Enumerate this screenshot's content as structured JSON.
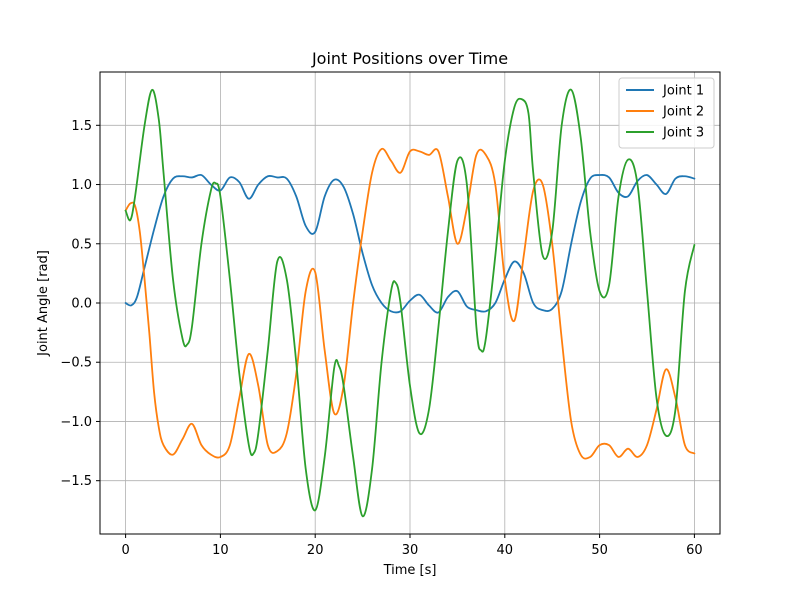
{
  "chart_data": {
    "type": "line",
    "title": "Joint Positions over Time",
    "xlabel": "Time [s]",
    "ylabel": "Joint Angle [rad]",
    "xlim": [
      -2.7,
      62.7
    ],
    "ylim": [
      -1.95,
      1.95
    ],
    "xticks": [
      0,
      10,
      20,
      30,
      40,
      50,
      60
    ],
    "yticks": [
      -1.5,
      -1.0,
      -0.5,
      0.0,
      0.5,
      1.0,
      1.5
    ],
    "ytick_labels": [
      "−1.5",
      "−1.0",
      "−0.5",
      "0.0",
      "0.5",
      "1.0",
      "1.5"
    ],
    "grid": true,
    "legend_position": "top-right",
    "series": [
      {
        "name": "Joint 1",
        "color": "#1f77b4",
        "x": [
          0,
          0.6,
          1.2,
          2,
          3,
          4,
          5,
          6,
          7,
          8,
          9,
          10,
          11,
          12,
          13,
          14,
          15,
          16,
          17,
          18,
          19,
          20,
          21,
          22,
          23,
          24,
          25,
          26,
          27,
          28,
          29,
          30,
          31,
          32,
          33,
          34,
          35,
          36,
          37,
          38,
          39,
          40,
          41,
          42,
          43,
          44,
          45,
          46,
          47,
          48,
          49,
          50,
          51,
          52,
          53,
          54,
          55,
          56,
          57,
          58,
          59,
          60
        ],
        "y": [
          0.0,
          -0.02,
          0.05,
          0.3,
          0.62,
          0.9,
          1.05,
          1.07,
          1.06,
          1.08,
          1.0,
          0.95,
          1.06,
          1.02,
          0.88,
          1.0,
          1.07,
          1.06,
          1.05,
          0.9,
          0.65,
          0.6,
          0.9,
          1.04,
          0.98,
          0.75,
          0.42,
          0.15,
          0.0,
          -0.07,
          -0.07,
          0.02,
          0.07,
          -0.02,
          -0.08,
          0.05,
          0.1,
          -0.03,
          -0.06,
          -0.07,
          0.0,
          0.2,
          0.35,
          0.25,
          0.0,
          -0.06,
          -0.05,
          0.1,
          0.5,
          0.85,
          1.05,
          1.08,
          1.06,
          0.93,
          0.9,
          1.03,
          1.08,
          1.0,
          0.92,
          1.05,
          1.07,
          1.05
        ]
      },
      {
        "name": "Joint 2",
        "color": "#ff7f0e",
        "x": [
          0,
          0.5,
          1,
          1.5,
          2,
          2.5,
          3,
          3.5,
          4,
          5,
          6,
          7,
          8,
          9,
          10,
          11,
          12,
          13,
          14,
          15,
          16,
          17,
          18,
          19,
          20,
          21,
          22,
          23,
          24,
          25,
          26,
          27,
          28,
          29,
          30,
          31,
          32,
          33,
          34,
          35,
          36,
          37,
          38,
          39,
          40,
          41,
          42,
          43,
          44,
          45,
          46,
          47,
          48,
          49,
          50,
          51,
          52,
          53,
          54,
          55,
          56,
          57,
          58,
          59,
          60
        ],
        "y": [
          0.78,
          0.84,
          0.82,
          0.6,
          0.2,
          -0.25,
          -0.75,
          -1.05,
          -1.2,
          -1.28,
          -1.15,
          -1.02,
          -1.2,
          -1.28,
          -1.3,
          -1.2,
          -0.8,
          -0.43,
          -0.7,
          -1.2,
          -1.25,
          -1.1,
          -0.6,
          0.1,
          0.26,
          -0.4,
          -0.93,
          -0.7,
          0.0,
          0.6,
          1.1,
          1.3,
          1.2,
          1.1,
          1.28,
          1.28,
          1.25,
          1.28,
          0.9,
          0.5,
          0.8,
          1.25,
          1.25,
          1.0,
          0.2,
          -0.15,
          0.4,
          0.95,
          1.0,
          0.5,
          -0.3,
          -1.0,
          -1.28,
          -1.3,
          -1.2,
          -1.2,
          -1.3,
          -1.23,
          -1.3,
          -1.2,
          -0.9,
          -0.56,
          -0.8,
          -1.2,
          -1.27
        ]
      },
      {
        "name": "Joint 3",
        "color": "#2ca02c",
        "x": [
          0,
          0.5,
          1,
          2,
          2.8,
          3.5,
          4,
          5,
          6,
          6.5,
          7,
          8,
          9,
          9.5,
          10,
          11,
          12,
          13,
          13.5,
          14,
          15,
          16,
          17,
          18,
          19,
          20,
          21,
          22,
          22.5,
          23,
          24,
          25,
          26,
          27,
          28,
          28.5,
          29,
          30,
          31,
          32,
          33,
          34,
          35,
          36,
          37,
          37.5,
          38,
          39,
          40,
          41,
          41.8,
          42.5,
          43,
          44,
          45,
          46,
          47,
          48,
          49,
          50,
          51,
          52,
          53,
          54,
          55,
          56,
          57,
          58,
          59,
          60
        ],
        "y": [
          0.78,
          0.7,
          0.9,
          1.5,
          1.8,
          1.55,
          1.1,
          0.2,
          -0.3,
          -0.35,
          -0.2,
          0.5,
          0.95,
          1.01,
          0.9,
          0.2,
          -0.6,
          -1.2,
          -1.27,
          -1.1,
          -0.4,
          0.35,
          0.2,
          -0.5,
          -1.4,
          -1.75,
          -1.3,
          -0.55,
          -0.53,
          -0.7,
          -1.3,
          -1.8,
          -1.4,
          -0.5,
          0.1,
          0.17,
          0.0,
          -0.7,
          -1.1,
          -0.9,
          -0.2,
          0.6,
          1.2,
          1.0,
          -0.2,
          -0.4,
          -0.3,
          0.4,
          1.2,
          1.65,
          1.72,
          1.6,
          1.1,
          0.4,
          0.6,
          1.5,
          1.8,
          1.4,
          0.6,
          0.1,
          0.15,
          0.9,
          1.21,
          1.0,
          0.1,
          -0.8,
          -1.12,
          -0.9,
          0.1,
          0.49
        ]
      }
    ]
  }
}
